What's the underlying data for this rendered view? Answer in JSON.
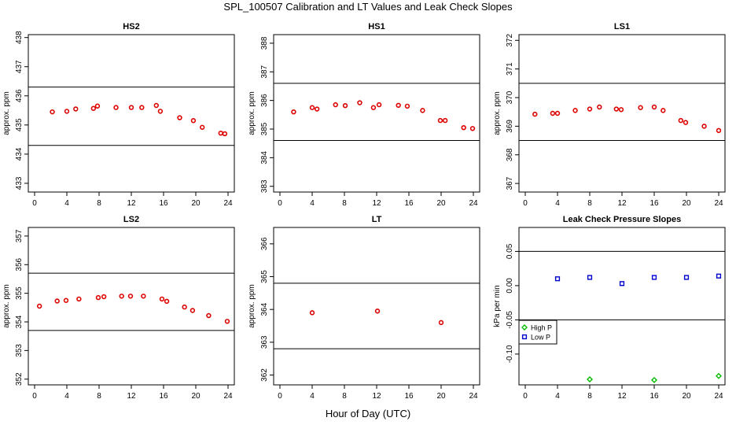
{
  "title": "SPL_100507  Calibration and LT Values and Leak Check Slopes",
  "xlabel": "Hour of Day (UTC)",
  "colors": {
    "cal": "#dd0000",
    "high_p": "#00bb00",
    "low_p": "#0000cc",
    "line": "#000000"
  },
  "chart_data": [
    {
      "type": "scatter",
      "title": "HS2",
      "ylabel": "approx. ppm",
      "xlim": [
        0,
        24
      ],
      "xticks": [
        0,
        4,
        8,
        12,
        16,
        20,
        24
      ],
      "ylim": [
        432.7,
        438.1
      ],
      "yticks": [
        433,
        434,
        435,
        436,
        437,
        438
      ],
      "hlines": [
        436.3,
        434.3
      ],
      "series": [
        {
          "color_key": "cal",
          "marker": "circle",
          "points": [
            [
              2.2,
              435.45
            ],
            [
              4,
              435.47
            ],
            [
              5.1,
              435.55
            ],
            [
              7.3,
              435.57
            ],
            [
              7.8,
              435.65
            ],
            [
              10.1,
              435.6
            ],
            [
              12,
              435.6
            ],
            [
              13.3,
              435.6
            ],
            [
              15.1,
              435.67
            ],
            [
              15.6,
              435.47
            ],
            [
              18,
              435.25
            ],
            [
              19.7,
              435.15
            ],
            [
              20.8,
              434.92
            ],
            [
              23.1,
              434.72
            ],
            [
              23.6,
              434.7
            ]
          ]
        }
      ]
    },
    {
      "type": "scatter",
      "title": "HS1",
      "ylabel": "approx. ppm",
      "xlim": [
        0,
        24
      ],
      "xticks": [
        0,
        4,
        8,
        12,
        16,
        20,
        24
      ],
      "ylim": [
        382.8,
        388.3
      ],
      "yticks": [
        383,
        384,
        385,
        386,
        387,
        388
      ],
      "hlines": [
        386.6,
        384.6
      ],
      "series": [
        {
          "color_key": "cal",
          "marker": "circle",
          "points": [
            [
              1.7,
              385.6
            ],
            [
              4,
              385.75
            ],
            [
              4.6,
              385.7
            ],
            [
              6.9,
              385.85
            ],
            [
              8.1,
              385.82
            ],
            [
              9.9,
              385.92
            ],
            [
              11.6,
              385.75
            ],
            [
              12.3,
              385.85
            ],
            [
              14.7,
              385.83
            ],
            [
              15.8,
              385.8
            ],
            [
              17.7,
              385.65
            ],
            [
              19.9,
              385.3
            ],
            [
              20.5,
              385.3
            ],
            [
              22.8,
              385.05
            ],
            [
              23.9,
              385.02
            ]
          ]
        }
      ]
    },
    {
      "type": "scatter",
      "title": "LS1",
      "ylabel": "approx. ppm",
      "xlim": [
        0,
        24
      ],
      "xticks": [
        0,
        4,
        8,
        12,
        16,
        20,
        24
      ],
      "ylim": [
        366.7,
        372.2
      ],
      "yticks": [
        367,
        368,
        369,
        370,
        371,
        372
      ],
      "hlines": [
        370.5,
        368.5
      ],
      "series": [
        {
          "color_key": "cal",
          "marker": "circle",
          "points": [
            [
              1.2,
              369.42
            ],
            [
              3.4,
              369.45
            ],
            [
              4,
              369.45
            ],
            [
              6.2,
              369.55
            ],
            [
              8,
              369.6
            ],
            [
              9.2,
              369.67
            ],
            [
              11.3,
              369.6
            ],
            [
              11.9,
              369.58
            ],
            [
              14.3,
              369.65
            ],
            [
              16,
              369.67
            ],
            [
              17.1,
              369.55
            ],
            [
              19.3,
              369.2
            ],
            [
              19.9,
              369.13
            ],
            [
              22.2,
              369
            ],
            [
              24,
              368.85
            ]
          ]
        }
      ]
    },
    {
      "type": "scatter",
      "title": "LS2",
      "ylabel": "approx. ppm",
      "xlim": [
        0,
        24
      ],
      "xticks": [
        0,
        4,
        8,
        12,
        16,
        20,
        24
      ],
      "ylim": [
        351.8,
        357.3
      ],
      "yticks": [
        352,
        353,
        354,
        355,
        356,
        357
      ],
      "hlines": [
        355.7,
        353.7
      ],
      "series": [
        {
          "color_key": "cal",
          "marker": "circle",
          "points": [
            [
              0.6,
              354.55
            ],
            [
              2.8,
              354.73
            ],
            [
              3.9,
              354.75
            ],
            [
              5.5,
              354.8
            ],
            [
              7.9,
              354.85
            ],
            [
              8.6,
              354.88
            ],
            [
              10.8,
              354.9
            ],
            [
              11.9,
              354.9
            ],
            [
              13.5,
              354.9
            ],
            [
              15.8,
              354.8
            ],
            [
              16.4,
              354.72
            ],
            [
              18.6,
              354.52
            ],
            [
              19.6,
              354.4
            ],
            [
              21.6,
              354.22
            ],
            [
              23.9,
              354.02
            ]
          ]
        }
      ]
    },
    {
      "type": "scatter",
      "title": "LT",
      "ylabel": "approx. ppm",
      "xlim": [
        0,
        24
      ],
      "xticks": [
        0,
        4,
        8,
        12,
        16,
        20,
        24
      ],
      "ylim": [
        361.7,
        366.5
      ],
      "yticks": [
        362,
        363,
        364,
        365,
        366
      ],
      "hlines": [
        364.8,
        362.8
      ],
      "series": [
        {
          "color_key": "cal",
          "marker": "circle",
          "points": [
            [
              4,
              363.9
            ],
            [
              12.1,
              363.95
            ],
            [
              20,
              363.6
            ]
          ]
        }
      ]
    },
    {
      "type": "scatter",
      "title": "Leak Check Pressure Slopes",
      "ylabel": "kPa per min",
      "xlim": [
        0,
        24
      ],
      "xticks": [
        0,
        4,
        8,
        12,
        16,
        20,
        24
      ],
      "ylim": [
        -0.145,
        0.085
      ],
      "yticks": [
        -0.1,
        -0.05,
        0.0,
        0.05
      ],
      "ytick_labels": [
        "-0.10",
        "-0.05",
        "0.00",
        "0.05"
      ],
      "hlines": [
        0.05,
        -0.05
      ],
      "legend": {
        "position": "left",
        "entries": [
          {
            "label": "High P",
            "color_key": "high_p",
            "marker": "diamond"
          },
          {
            "label": "Low P",
            "color_key": "low_p",
            "marker": "square"
          }
        ]
      },
      "series": [
        {
          "name": "High P",
          "color_key": "high_p",
          "marker": "diamond",
          "points": [
            [
              8,
              -0.137
            ],
            [
              16,
              -0.138
            ],
            [
              24,
              -0.132
            ]
          ]
        },
        {
          "name": "Low P",
          "color_key": "low_p",
          "marker": "square",
          "points": [
            [
              4,
              0.01
            ],
            [
              8,
              0.012
            ],
            [
              12,
              0.003
            ],
            [
              16,
              0.012
            ],
            [
              20,
              0.012
            ],
            [
              24,
              0.014
            ]
          ]
        }
      ]
    }
  ]
}
